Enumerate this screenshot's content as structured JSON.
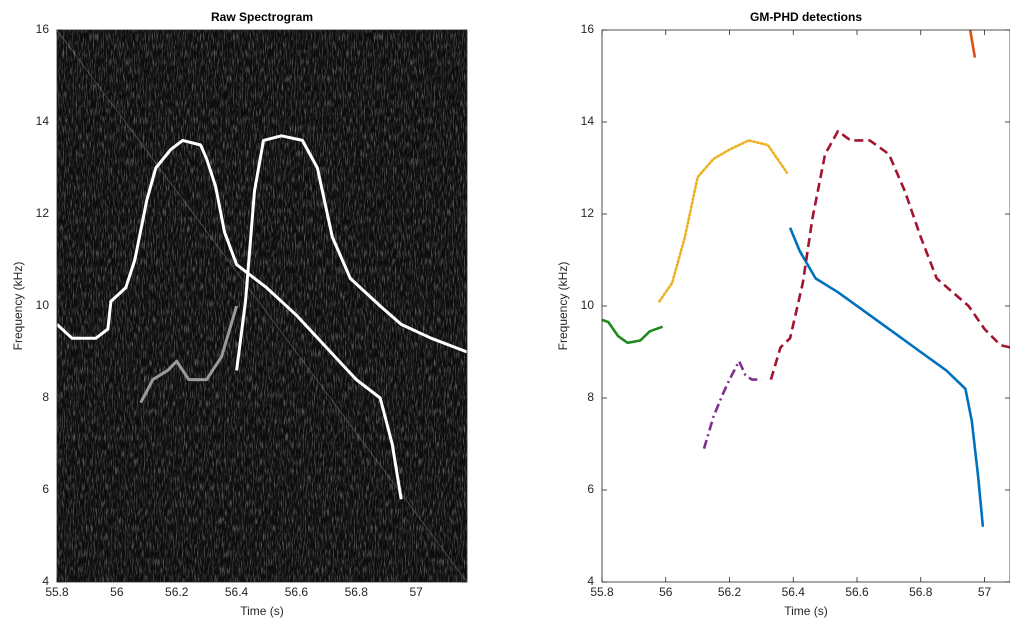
{
  "chart_data": [
    {
      "type": "spectrogram",
      "title": "Raw Spectrogram",
      "x_label": "Time (s)",
      "y_label": "Frequency (kHz)",
      "xlim": [
        55.8,
        57.17
      ],
      "ylim": [
        4,
        16
      ],
      "xticks": [
        55.8,
        56,
        56.2,
        56.4,
        56.6,
        56.8,
        57
      ],
      "yticks": [
        4,
        6,
        8,
        10,
        12,
        14,
        16
      ],
      "series": [
        {
          "color": "#ffffff",
          "x": [
            55.8,
            55.85,
            55.93,
            55.97,
            55.98,
            56.03,
            56.06,
            56.1,
            56.13,
            56.18,
            56.22,
            56.28,
            56.3,
            56.33,
            56.36,
            56.4,
            56.5,
            56.6,
            56.7,
            56.8,
            56.88,
            56.92,
            56.95
          ],
          "values": [
            9.6,
            9.3,
            9.3,
            9.5,
            10.1,
            10.4,
            11.0,
            12.3,
            13.0,
            13.4,
            13.6,
            13.5,
            13.2,
            12.6,
            11.6,
            10.9,
            10.4,
            9.8,
            9.1,
            8.4,
            8.0,
            7.0,
            5.8
          ]
        },
        {
          "color": "#ffffff",
          "x": [
            56.4,
            56.43,
            56.46,
            56.49,
            56.55,
            56.62,
            56.67,
            56.72,
            56.78,
            56.88,
            56.95,
            57.05,
            57.17
          ],
          "values": [
            8.6,
            10.1,
            12.5,
            13.6,
            13.7,
            13.6,
            13.0,
            11.5,
            10.6,
            10.0,
            9.6,
            9.3,
            9.0
          ]
        },
        {
          "color": "#9a9a9a",
          "x": [
            56.08,
            56.12,
            56.17,
            56.2,
            56.24,
            56.3,
            56.35,
            56.4
          ],
          "values": [
            7.9,
            8.4,
            8.6,
            8.8,
            8.4,
            8.4,
            8.9,
            10.0
          ]
        }
      ]
    },
    {
      "type": "line",
      "title": "GM-PHD detections",
      "x_label": "Time (s)",
      "y_label": "Frequency (kHz)",
      "xlim": [
        55.8,
        57.08
      ],
      "ylim": [
        4,
        16
      ],
      "xticks": [
        55.8,
        56,
        56.2,
        56.4,
        56.6,
        56.8,
        57
      ],
      "yticks": [
        4,
        6,
        8,
        10,
        12,
        14,
        16
      ],
      "series": [
        {
          "color": "#0072bd",
          "dash": "solid",
          "x": [
            56.39,
            56.42,
            56.47,
            56.54,
            56.62,
            56.72,
            56.8,
            56.88,
            56.94,
            56.96,
            56.98,
            56.995
          ],
          "values": [
            11.7,
            11.2,
            10.6,
            10.3,
            9.9,
            9.4,
            9.0,
            8.6,
            8.2,
            7.5,
            6.3,
            5.2
          ]
        },
        {
          "color": "#d95319",
          "dash": "solid",
          "x": [
            56.955,
            56.97
          ],
          "values": [
            16,
            15.4
          ]
        },
        {
          "color": "#edb120",
          "dash": "dotted",
          "x": [
            55.98,
            56.02,
            56.06,
            56.1,
            56.15,
            56.2,
            56.26,
            56.32,
            56.38
          ],
          "values": [
            10.1,
            10.5,
            11.5,
            12.8,
            13.2,
            13.4,
            13.6,
            13.5,
            12.9
          ]
        },
        {
          "color": "#7e2f8e",
          "dash": "dashdot",
          "x": [
            56.12,
            56.15,
            56.18,
            56.2,
            56.23,
            56.25,
            56.27,
            56.3
          ],
          "values": [
            6.9,
            7.6,
            8.1,
            8.4,
            8.8,
            8.5,
            8.4,
            8.4
          ]
        },
        {
          "color": "#1f8a1f",
          "dash": "solid",
          "x": [
            55.8,
            55.82,
            55.85,
            55.88,
            55.92,
            55.95,
            55.99
          ],
          "values": [
            9.7,
            9.65,
            9.35,
            9.2,
            9.25,
            9.45,
            9.55
          ]
        },
        {
          "color": "#a2142f",
          "dash": "dashed",
          "x": [
            56.33,
            56.36,
            56.39,
            56.43,
            56.46,
            56.5,
            56.54,
            56.58,
            56.64,
            56.7,
            56.75,
            56.8,
            56.85,
            56.9,
            56.95,
            57.0,
            57.05,
            57.08
          ],
          "values": [
            8.4,
            9.1,
            9.3,
            10.5,
            11.9,
            13.3,
            13.8,
            13.6,
            13.6,
            13.3,
            12.5,
            11.5,
            10.6,
            10.3,
            10.0,
            9.5,
            9.15,
            9.1
          ]
        }
      ]
    }
  ]
}
